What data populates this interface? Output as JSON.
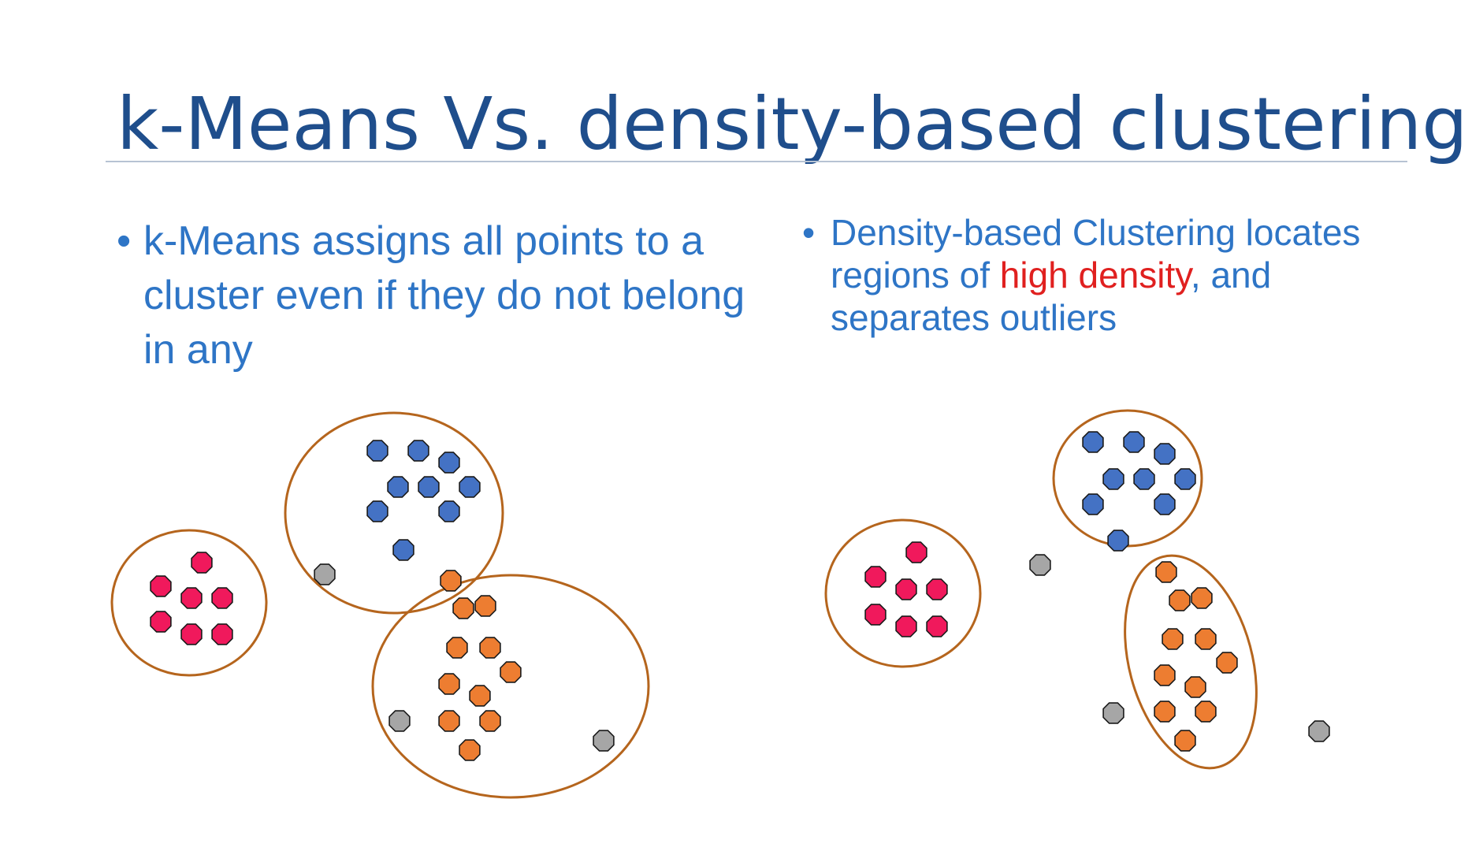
{
  "slide": {
    "title": "k-Means Vs. density-based clustering",
    "bullet_left": {
      "text": "k-Means assigns all points to a cluster even if they do not belong in any"
    },
    "bullet_right": {
      "text_before": "Density-based Clustering locates regions of ",
      "highlight": "high density",
      "text_after": ", and separates outliers"
    }
  },
  "colors": {
    "title": "#1f4e8c",
    "bullet_text": "#2e75c6",
    "highlight": "#e0201f",
    "cluster_outline": "#b5651d",
    "pink": "#f0195c",
    "blue": "#4472c4",
    "orange": "#ed7d31",
    "gray": "#a6a6a6",
    "point_border": "#1a1a1a"
  }
}
